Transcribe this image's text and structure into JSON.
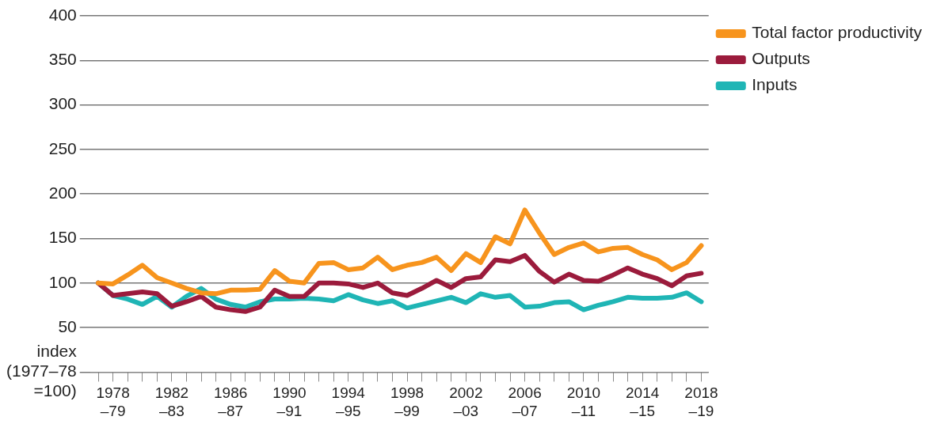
{
  "chart_data": {
    "type": "line",
    "categories": [
      null,
      "1978\n–79",
      null,
      null,
      null,
      "1982\n–83",
      null,
      null,
      null,
      "1986\n–87",
      null,
      null,
      null,
      "1990\n–91",
      null,
      null,
      null,
      "1994\n–95",
      null,
      null,
      null,
      "1998\n–99",
      null,
      null,
      null,
      "2002\n–03",
      null,
      null,
      null,
      "2006\n–07",
      null,
      null,
      null,
      "2010\n–11",
      null,
      null,
      null,
      "2014\n–15",
      null,
      null,
      null,
      "2018\n–19"
    ],
    "series": [
      {
        "name": "Total factor productivity",
        "color": "#f7941d",
        "values": [
          100,
          99,
          109,
          120,
          106,
          100,
          94,
          89,
          88,
          92,
          92,
          93,
          114,
          102,
          100,
          122,
          123,
          115,
          117,
          129,
          115,
          120,
          123,
          129,
          114,
          133,
          123,
          152,
          144,
          182,
          156,
          132,
          140,
          145,
          135,
          139,
          140,
          132,
          126,
          115,
          123,
          142
        ]
      },
      {
        "name": "Outputs",
        "color": "#9b1b3c",
        "values": [
          100,
          86,
          88,
          90,
          88,
          74,
          79,
          85,
          73,
          70,
          68,
          73,
          92,
          85,
          85,
          100,
          100,
          99,
          95,
          100,
          89,
          86,
          94,
          103,
          95,
          105,
          107,
          126,
          124,
          131,
          113,
          101,
          110,
          103,
          102,
          109,
          117,
          110,
          105,
          97,
          108,
          111
        ]
      },
      {
        "name": "Inputs",
        "color": "#1fb5b5",
        "values": [
          100,
          86,
          82,
          76,
          85,
          73,
          85,
          94,
          82,
          76,
          73,
          79,
          82,
          82,
          83,
          82,
          80,
          87,
          81,
          77,
          80,
          72,
          76,
          80,
          84,
          78,
          88,
          84,
          86,
          73,
          74,
          78,
          79,
          70,
          75,
          79,
          84,
          83,
          83,
          84,
          89,
          79
        ]
      }
    ],
    "ylim": [
      0,
      400
    ],
    "yticks": [
      {
        "value": 0,
        "label": "index\n(1977–78\n=100)"
      },
      50,
      100,
      150,
      200,
      250,
      300,
      350,
      400
    ],
    "grid": "y",
    "legend": "top right",
    "marker": "none",
    "line_style": "solid"
  }
}
